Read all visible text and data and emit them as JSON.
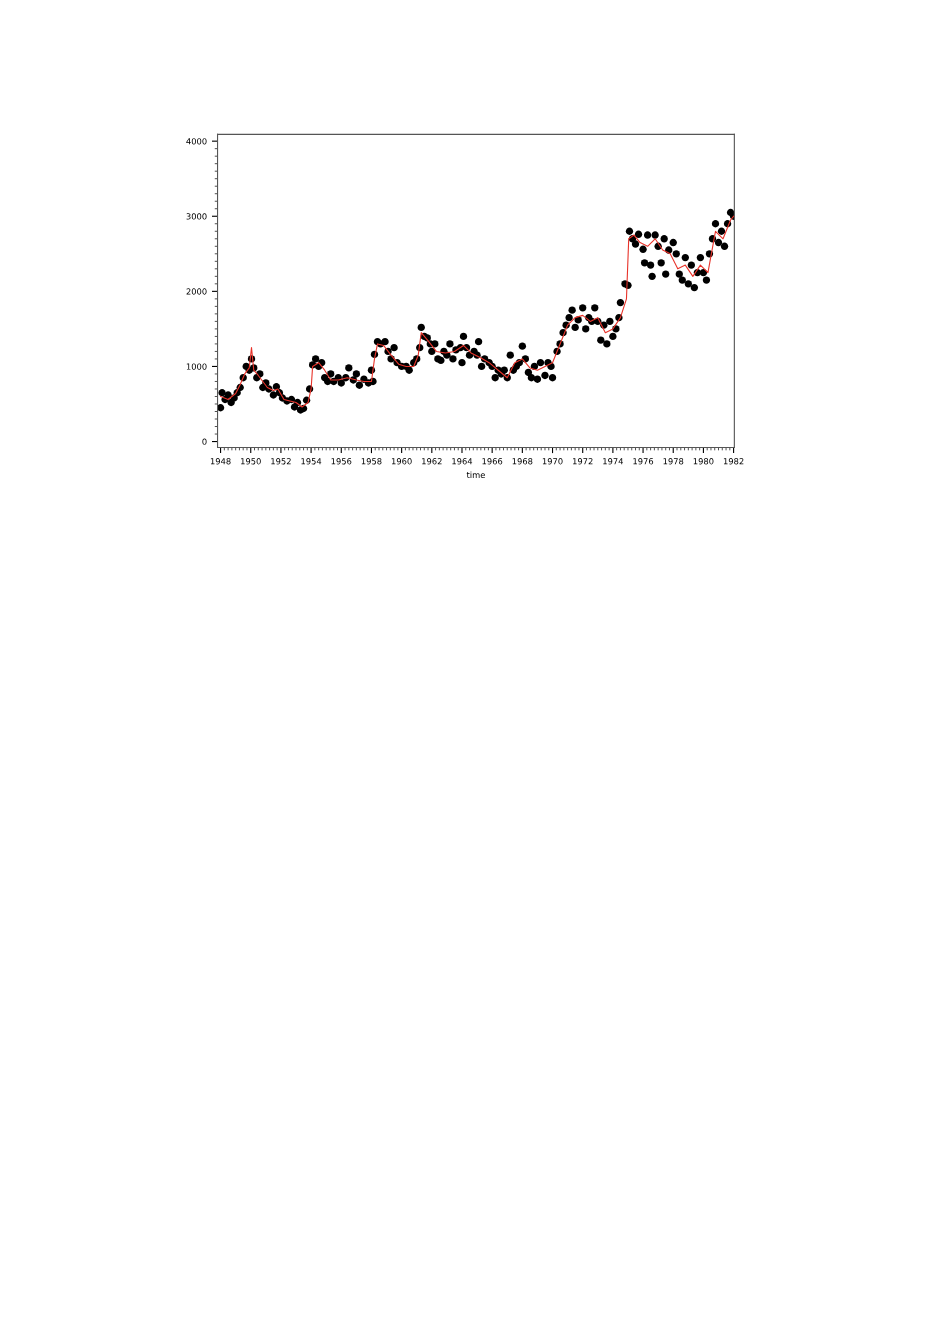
{
  "chart_data": {
    "type": "scatter",
    "xlabel": "time",
    "xlim": [
      1947.8,
      1982.05
    ],
    "ylim": [
      -80,
      4090
    ],
    "xticks": [
      1948,
      1950,
      1952,
      1954,
      1956,
      1958,
      1960,
      1962,
      1964,
      1966,
      1968,
      1970,
      1972,
      1974,
      1976,
      1978,
      1980,
      1982
    ],
    "yticks": [
      0,
      1000,
      2000,
      3000,
      4000
    ],
    "grid": false,
    "legend": false,
    "series": [
      {
        "color": "#000000",
        "marker": "circle",
        "x": [
          1948.0,
          1948.1,
          1948.3,
          1948.5,
          1948.7,
          1948.9,
          1949.1,
          1949.3,
          1949.5,
          1949.7,
          1949.9,
          1950.05,
          1950.2,
          1950.4,
          1950.6,
          1950.8,
          1951.0,
          1951.2,
          1951.5,
          1951.7,
          1951.9,
          1952.1,
          1952.4,
          1952.7,
          1952.9,
          1953.1,
          1953.3,
          1953.5,
          1953.7,
          1953.9,
          1954.1,
          1954.3,
          1954.5,
          1954.7,
          1954.9,
          1955.1,
          1955.3,
          1955.5,
          1955.8,
          1956.0,
          1956.3,
          1956.5,
          1956.8,
          1957.0,
          1957.2,
          1957.5,
          1957.8,
          1958.0,
          1958.1,
          1958.2,
          1958.4,
          1958.6,
          1958.9,
          1959.1,
          1959.3,
          1959.5,
          1959.7,
          1960.0,
          1960.3,
          1960.5,
          1960.8,
          1961.0,
          1961.2,
          1961.3,
          1961.5,
          1961.7,
          1961.9,
          1962.0,
          1962.2,
          1962.4,
          1962.6,
          1962.8,
          1963.0,
          1963.2,
          1963.4,
          1963.6,
          1963.9,
          1964.0,
          1964.1,
          1964.3,
          1964.5,
          1964.8,
          1965.0,
          1965.1,
          1965.3,
          1965.5,
          1965.8,
          1966.0,
          1966.2,
          1966.4,
          1966.6,
          1966.8,
          1967.0,
          1967.2,
          1967.4,
          1967.6,
          1967.8,
          1968.0,
          1968.2,
          1968.4,
          1968.6,
          1968.8,
          1969.0,
          1969.2,
          1969.5,
          1969.7,
          1969.9,
          1970.0,
          1970.3,
          1970.5,
          1970.7,
          1970.9,
          1971.1,
          1971.3,
          1971.5,
          1971.7,
          1972.0,
          1972.2,
          1972.4,
          1972.6,
          1972.8,
          1973.0,
          1973.2,
          1973.4,
          1973.6,
          1973.8,
          1974.0,
          1974.2,
          1974.4,
          1974.5,
          1974.8,
          1975.0,
          1975.1,
          1975.3,
          1975.5,
          1975.7,
          1976.0,
          1976.1,
          1976.3,
          1976.5,
          1976.6,
          1976.8,
          1977.0,
          1977.2,
          1977.4,
          1977.5,
          1977.7,
          1978.0,
          1978.2,
          1978.4,
          1978.6,
          1978.8,
          1979.0,
          1979.2,
          1979.4,
          1979.6,
          1979.8,
          1980.0,
          1980.2,
          1980.4,
          1980.6,
          1980.8,
          1981.0,
          1981.2,
          1981.4,
          1981.6,
          1981.8,
          1982.0
        ],
        "values": [
          450,
          650,
          560,
          620,
          520,
          580,
          650,
          720,
          850,
          1000,
          950,
          1100,
          980,
          850,
          900,
          720,
          780,
          700,
          620,
          730,
          650,
          580,
          540,
          560,
          460,
          520,
          420,
          440,
          550,
          700,
          1020,
          1100,
          1000,
          1050,
          850,
          800,
          900,
          800,
          850,
          780,
          850,
          980,
          820,
          900,
          750,
          830,
          780,
          950,
          800,
          1160,
          1330,
          1300,
          1330,
          1200,
          1100,
          1250,
          1050,
          1000,
          1000,
          950,
          1050,
          1100,
          1250,
          1520,
          1400,
          1380,
          1300,
          1200,
          1300,
          1100,
          1080,
          1200,
          1150,
          1300,
          1100,
          1220,
          1250,
          1050,
          1400,
          1250,
          1150,
          1200,
          1150,
          1330,
          1000,
          1100,
          1050,
          1000,
          850,
          950,
          900,
          950,
          850,
          1150,
          950,
          1000,
          1050,
          1270,
          1100,
          920,
          850,
          1000,
          830,
          1050,
          880,
          1050,
          1000,
          850,
          1200,
          1300,
          1450,
          1550,
          1650,
          1750,
          1520,
          1620,
          1780,
          1500,
          1650,
          1600,
          1780,
          1600,
          1350,
          1550,
          1300,
          1600,
          1400,
          1500,
          1650,
          1850,
          2100,
          2080,
          2800,
          2700,
          2630,
          2760,
          2560,
          2380,
          2750,
          2350,
          2200,
          2750,
          2600,
          2380,
          2700,
          2230,
          2550,
          2650,
          2500,
          2230,
          2150,
          2450,
          2100,
          2350,
          2050,
          2250,
          2450,
          2250,
          2150,
          2500,
          2700,
          2900,
          2650,
          2800,
          2600,
          2900,
          3050,
          3000
        ]
      },
      {
        "type": "line",
        "color": "#e8332a",
        "line_style": "solid",
        "marker": "none",
        "x": [
          1948.0,
          1948.5,
          1949.0,
          1949.3,
          1949.6,
          1949.9,
          1950.05,
          1950.2,
          1950.5,
          1950.8,
          1951.1,
          1951.5,
          1951.8,
          1952.2,
          1952.6,
          1953.0,
          1953.4,
          1953.8,
          1954.0,
          1954.1,
          1954.5,
          1954.9,
          1955.3,
          1955.8,
          1956.4,
          1957.0,
          1957.5,
          1958.0,
          1958.2,
          1958.4,
          1958.8,
          1959.3,
          1959.8,
          1960.3,
          1960.8,
          1961.1,
          1961.3,
          1961.8,
          1962.3,
          1962.9,
          1963.5,
          1964.1,
          1964.6,
          1965.2,
          1965.8,
          1966.4,
          1967.0,
          1967.5,
          1968.0,
          1968.5,
          1969.0,
          1969.5,
          1970.0,
          1970.5,
          1971.0,
          1971.5,
          1972.0,
          1972.5,
          1973.0,
          1973.5,
          1974.0,
          1974.5,
          1974.9,
          1975.05,
          1975.4,
          1975.8,
          1976.3,
          1976.8,
          1977.3,
          1977.8,
          1978.3,
          1978.8,
          1979.3,
          1979.8,
          1980.3,
          1980.8,
          1981.3,
          1981.8,
          1982.0
        ],
        "values": [
          600,
          560,
          640,
          760,
          900,
          980,
          1250,
          950,
          880,
          800,
          720,
          680,
          700,
          560,
          540,
          520,
          460,
          520,
          700,
          1000,
          1050,
          950,
          820,
          820,
          850,
          820,
          800,
          800,
          1100,
          1300,
          1280,
          1150,
          1030,
          1000,
          1000,
          1150,
          1450,
          1330,
          1200,
          1180,
          1200,
          1280,
          1180,
          1120,
          1050,
          950,
          850,
          1050,
          1100,
          980,
          950,
          1000,
          1050,
          1300,
          1550,
          1650,
          1680,
          1600,
          1650,
          1450,
          1500,
          1650,
          1900,
          2700,
          2750,
          2650,
          2600,
          2700,
          2550,
          2500,
          2300,
          2350,
          2200,
          2350,
          2250,
          2800,
          2700,
          2950,
          3000
        ]
      }
    ]
  }
}
